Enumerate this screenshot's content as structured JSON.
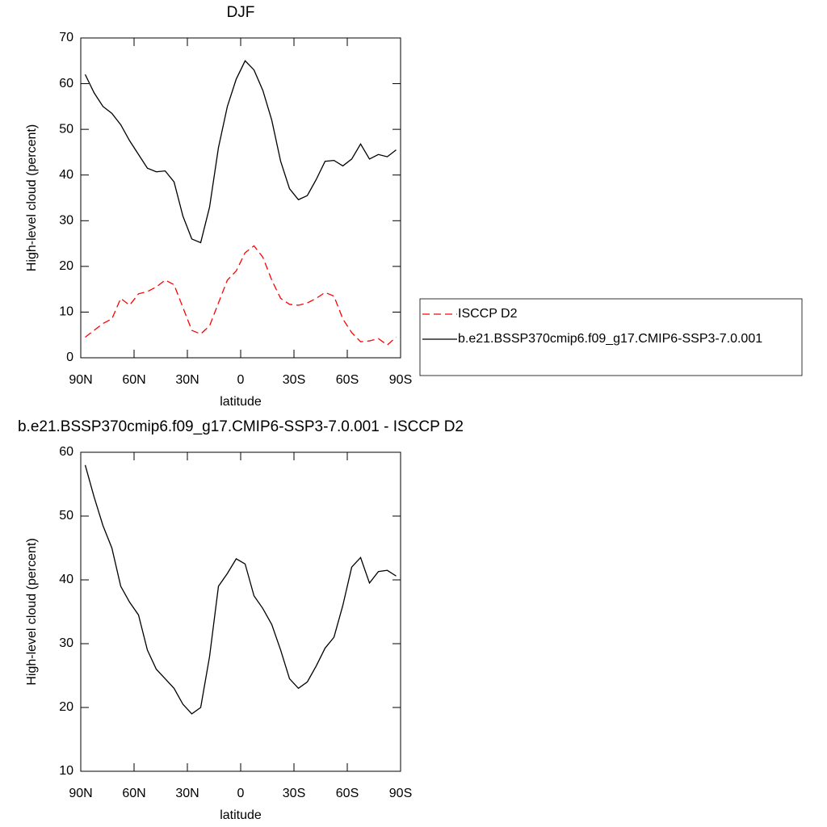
{
  "chart_data": [
    {
      "type": "line",
      "title": "DJF",
      "xlabel": "latitude",
      "ylabel": "High-level cloud (percent)",
      "x": [
        87.5,
        82.5,
        77.5,
        72.5,
        67.5,
        62.5,
        57.5,
        52.5,
        47.5,
        42.5,
        37.5,
        32.5,
        27.5,
        22.5,
        17.5,
        12.5,
        7.5,
        2.5,
        -2.5,
        -7.5,
        -12.5,
        -17.5,
        -22.5,
        -27.5,
        -32.5,
        -37.5,
        -42.5,
        -47.5,
        -52.5,
        -57.5,
        -62.5,
        -67.5,
        -72.5,
        -77.5,
        -82.5,
        -87.5
      ],
      "xlim": [
        90,
        -90
      ],
      "xticks": [
        {
          "value": 90,
          "label": "90N"
        },
        {
          "value": 60,
          "label": "60N"
        },
        {
          "value": 30,
          "label": "30N"
        },
        0,
        {
          "value": -30,
          "label": "30S"
        },
        {
          "value": -60,
          "label": "60S"
        },
        {
          "value": -90,
          "label": "90S"
        }
      ],
      "ylim": [
        0,
        70
      ],
      "yticks": [
        0,
        10,
        20,
        30,
        40,
        50,
        60,
        70
      ],
      "legend": "right",
      "series": [
        {
          "name": "ISCCP D2",
          "color": "#ff0000",
          "style": "dashed",
          "values": [
            4.5,
            6,
            7.5,
            8.5,
            13,
            11.5,
            14,
            14.5,
            15.5,
            17,
            16,
            11,
            6,
            5.2,
            7,
            12,
            17,
            19,
            23,
            24.5,
            22,
            17,
            13,
            11.7,
            11.5,
            12,
            13,
            14.3,
            13.5,
            8.5,
            5.5,
            3.5,
            3.7,
            4.2,
            2.8,
            4.5
          ]
        },
        {
          "name": "b.e21.BSSP370cmip6.f09_g17.CMIP6-SSP3-7.0.001",
          "color": "#000000",
          "style": "solid",
          "values": [
            62,
            58,
            55,
            53.5,
            51,
            47.5,
            44.5,
            41.5,
            40.7,
            40.9,
            38.5,
            31,
            26,
            25.2,
            33,
            46,
            55,
            61,
            65,
            63,
            58.5,
            52,
            43,
            37,
            34.6,
            35.5,
            39,
            43,
            43.2,
            42,
            43.5,
            46.8,
            43.5,
            44.5,
            44,
            45.5
          ]
        }
      ]
    },
    {
      "type": "line",
      "title": "b.e21.BSSP370cmip6.f09_g17.CMIP6-SSP3-7.0.001 - ISCCP D2",
      "xlabel": "latitude",
      "ylabel": "High-level cloud (percent)",
      "x": [
        87.5,
        82.5,
        77.5,
        72.5,
        67.5,
        62.5,
        57.5,
        52.5,
        47.5,
        42.5,
        37.5,
        32.5,
        27.5,
        22.5,
        17.5,
        12.5,
        7.5,
        2.5,
        -2.5,
        -7.5,
        -12.5,
        -17.5,
        -22.5,
        -27.5,
        -32.5,
        -37.5,
        -42.5,
        -47.5,
        -52.5,
        -57.5,
        -62.5,
        -67.5,
        -72.5,
        -77.5,
        -82.5,
        -87.5
      ],
      "xlim": [
        90,
        -90
      ],
      "xticks": [
        {
          "value": 90,
          "label": "90N"
        },
        {
          "value": 60,
          "label": "60N"
        },
        {
          "value": 30,
          "label": "30N"
        },
        0,
        {
          "value": -30,
          "label": "30S"
        },
        {
          "value": -60,
          "label": "60S"
        },
        {
          "value": -90,
          "label": "90S"
        }
      ],
      "ylim": [
        10,
        60
      ],
      "yticks": [
        10,
        20,
        30,
        40,
        50,
        60
      ],
      "series": [
        {
          "color": "#000000",
          "style": "solid",
          "values": [
            58,
            53,
            48.5,
            45,
            39,
            36.5,
            34.5,
            29,
            26,
            24.5,
            23,
            20.5,
            19,
            20,
            28,
            39,
            41,
            43.3,
            42.5,
            37.5,
            35.5,
            33,
            29,
            24.5,
            23,
            24,
            26.5,
            29.3,
            31,
            36,
            42,
            43.5,
            39.5,
            41.3,
            41.5,
            40.6
          ]
        }
      ]
    }
  ]
}
